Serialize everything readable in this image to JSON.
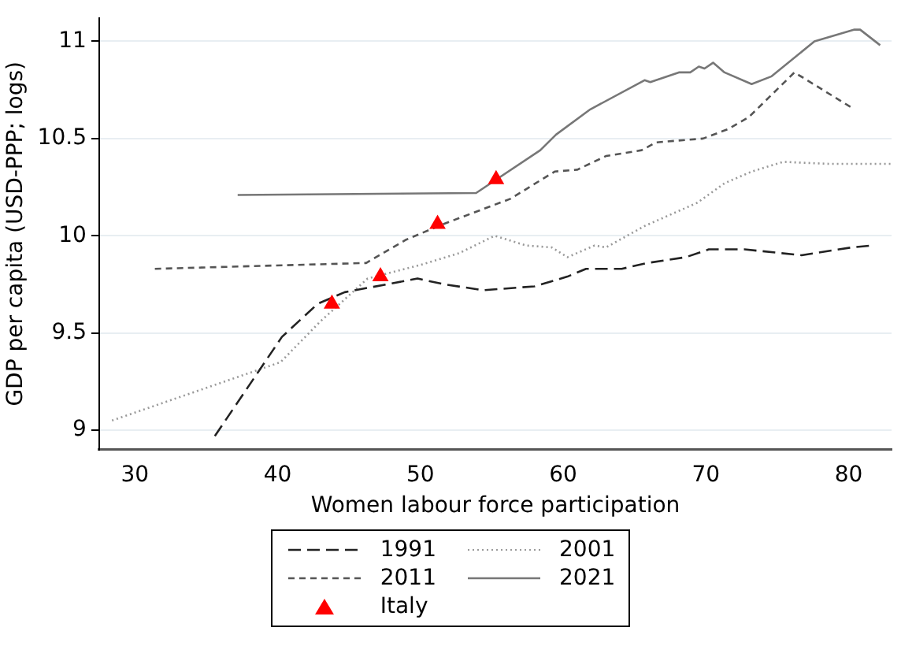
{
  "chart_data": {
    "type": "line",
    "xlabel": "Women labour force participation",
    "ylabel": "GDP per capita (USD-PPP; logs)",
    "xlim": [
      27.5,
      83
    ],
    "xticks": [
      30,
      40,
      50,
      60,
      70,
      80
    ],
    "ylim": [
      8.9,
      11.12
    ],
    "yticks": [
      9,
      9.5,
      10,
      10.5,
      11
    ],
    "grid": "y",
    "legend": "bottom",
    "marker": "none",
    "series": [
      {
        "name": "1991",
        "color": "#222222",
        "line_style": "dashed",
        "x": [
          35.6,
          40.3,
          42.8,
          44.7,
          49.8,
          51.7,
          54.4,
          58,
          60.3,
          61.6,
          64.1,
          65.9,
          68.6,
          70.2,
          71.8,
          72.7,
          76.7,
          80.2,
          81.6
        ],
        "values": [
          8.97,
          9.48,
          9.65,
          9.71,
          9.78,
          9.75,
          9.72,
          9.74,
          9.79,
          9.83,
          9.83,
          9.86,
          9.89,
          9.93,
          9.93,
          9.93,
          9.9,
          9.94,
          9.95
        ]
      },
      {
        "name": "2001",
        "color": "#999999",
        "line_style": "dotted",
        "x": [
          28.4,
          40.2,
          43,
          46.3,
          50,
          52.7,
          55.2,
          57.4,
          59.2,
          60.3,
          62.2,
          63,
          65.7,
          69.4,
          71.3,
          73.2,
          75.4,
          78.6,
          83
        ],
        "values": [
          9.05,
          9.35,
          9.56,
          9.78,
          9.85,
          9.91,
          10,
          9.95,
          9.94,
          9.89,
          9.95,
          9.94,
          10.05,
          10.17,
          10.27,
          10.33,
          10.38,
          10.37,
          10.37
        ]
      },
      {
        "name": "2011",
        "color": "#555555",
        "line_style": "dashed",
        "x": [
          31.4,
          46.2,
          49,
          51.6,
          56.3,
          59.4,
          61,
          63,
          65.5,
          66.5,
          69.8,
          71.6,
          73,
          76.2,
          80.4
        ],
        "values": [
          9.83,
          9.86,
          9.98,
          10.06,
          10.19,
          10.33,
          10.34,
          10.41,
          10.44,
          10.48,
          10.5,
          10.55,
          10.61,
          10.84,
          10.65
        ]
      },
      {
        "name": "2021",
        "color": "#777777",
        "line_style": "solid",
        "x": [
          37.2,
          53.9,
          58.4,
          59.5,
          61.9,
          65.7,
          66.1,
          68.1,
          68.9,
          69.5,
          69.9,
          70.5,
          71.3,
          73.2,
          74.6,
          77.6,
          80.4,
          80.8,
          82.2
        ],
        "values": [
          10.21,
          10.22,
          10.44,
          10.52,
          10.65,
          10.8,
          10.79,
          10.84,
          10.84,
          10.87,
          10.86,
          10.89,
          10.84,
          10.78,
          10.82,
          11,
          11.06,
          11.06,
          10.98
        ]
      },
      {
        "name": "Italy",
        "type": "scatter",
        "marker": "triangle",
        "color": "#ff0000",
        "x": [
          43.8,
          47.2,
          51.2,
          55.3
        ],
        "values": [
          9.65,
          9.79,
          10.06,
          10.29
        ]
      }
    ]
  }
}
